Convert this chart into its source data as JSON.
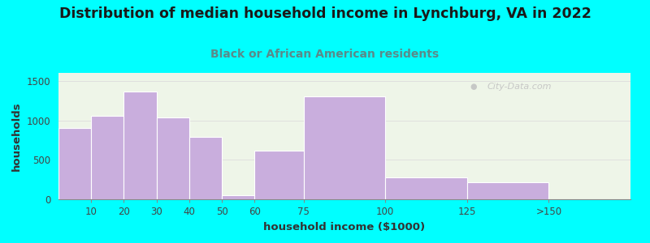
{
  "categories": [
    "10",
    "20",
    "30",
    "40",
    "50",
    "60",
    "75",
    "100",
    "125",
    ">150"
  ],
  "values": [
    900,
    1060,
    1360,
    1040,
    790,
    50,
    620,
    1300,
    280,
    215
  ],
  "bar_color": "#c9aedd",
  "title": "Distribution of median household income in Lynchburg, VA in 2022",
  "subtitle": "Black or African American residents",
  "xlabel": "household income ($1000)",
  "ylabel": "households",
  "ylim": [
    0,
    1600
  ],
  "yticks": [
    0,
    500,
    1000,
    1500
  ],
  "xlim": [
    0,
    175
  ],
  "background_color": "#00ffff",
  "plot_bg_color": "#eef5e8",
  "title_fontsize": 12.5,
  "subtitle_fontsize": 10,
  "label_fontsize": 9.5,
  "tick_fontsize": 8.5,
  "watermark": "City-Data.com",
  "title_color": "#1a1a1a",
  "subtitle_color": "#5a8a8a",
  "tick_color": "#444444",
  "label_color": "#333333"
}
